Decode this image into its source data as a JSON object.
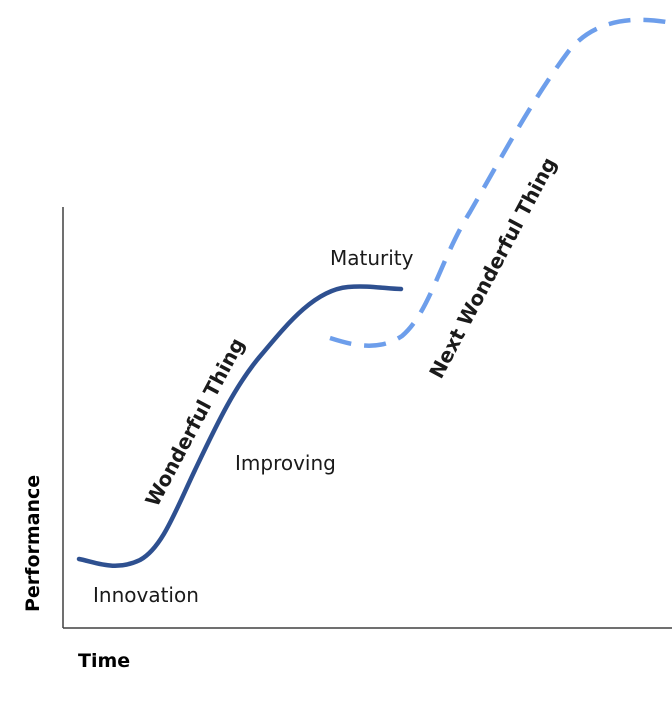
{
  "axes": {
    "x_label": "Time",
    "y_label": "Performance"
  },
  "curves": {
    "current": {
      "label": "Wonderful Thing",
      "color": "#2e5090"
    },
    "next": {
      "label": "Next Wonderful Thing",
      "color": "#6d9eeb",
      "label_color": "#a6a6a6",
      "style": "dashed"
    }
  },
  "stages": {
    "innovation": "Innovation",
    "improving": "Improving",
    "maturity": "Maturity"
  }
}
